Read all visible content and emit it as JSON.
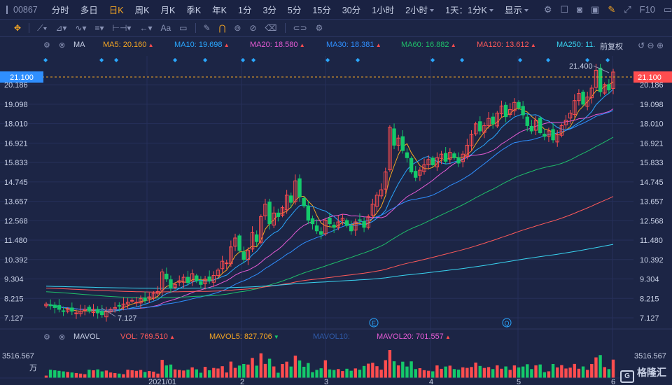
{
  "topbar": {
    "code": "00867",
    "intervals": [
      "分时",
      "多日",
      "日K",
      "周K",
      "月K",
      "季K",
      "年K",
      "1分",
      "3分",
      "5分",
      "15分",
      "30分",
      "1小时",
      "2小时",
      "1天：1分K"
    ],
    "active_interval": "日K",
    "display_label": "显示",
    "f10_label": "F10"
  },
  "toolbar": {
    "text_tool": "Aa"
  },
  "ma_legend": {
    "label": "MA",
    "items": [
      {
        "label": "MA5: 20.160",
        "color": "#f5a623"
      },
      {
        "label": "MA10: 19.698",
        "color": "#2aa7ff"
      },
      {
        "label": "MA20: 18.580",
        "color": "#e55bd5"
      },
      {
        "label": "MA30: 18.381",
        "color": "#2f8fff"
      },
      {
        "label": "MA60: 16.882",
        "color": "#1fbf6a"
      },
      {
        "label": "MA120: 13.612",
        "color": "#ff5a5a"
      },
      {
        "label": "MA250: 11.",
        "color": "#39d3f0"
      }
    ],
    "restore": "前复权"
  },
  "price_axis": {
    "ticks": [
      "21.100",
      "20.186",
      "19.098",
      "18.010",
      "16.921",
      "15.833",
      "14.745",
      "13.657",
      "12.568",
      "11.480",
      "10.392",
      "9.304",
      "8.215",
      "7.127"
    ],
    "current": "21.100"
  },
  "annotations": {
    "high": "21.400",
    "low": "7.127",
    "event_e": "E",
    "event_q": "Q"
  },
  "vol_legend": {
    "label": "MAVOL",
    "items": [
      {
        "label": "VOL: 769.510",
        "color": "#ff5a5a",
        "dir": "up"
      },
      {
        "label": "MAVOL5: 827.706",
        "color": "#f5a623",
        "dir": "down"
      },
      {
        "label": "MAVOL10:",
        "color": "#2f5aa8",
        "dir": "none"
      },
      {
        "label": "MAVOL20: 701.557",
        "color": "#e55bd5",
        "dir": "up"
      }
    ],
    "axis_value": "3516.567",
    "axis_unit": "万"
  },
  "x_axis": {
    "labels": [
      "2021/01",
      "2",
      "3",
      "4",
      "5",
      "6"
    ]
  },
  "brand": "格隆汇",
  "chart_data": {
    "type": "candlestick",
    "ylim": [
      6.5,
      21.8
    ],
    "closes": [
      7.9,
      7.8,
      7.7,
      7.6,
      7.5,
      7.6,
      7.5,
      7.4,
      7.5,
      7.6,
      7.5,
      7.6,
      7.4,
      7.3,
      7.5,
      7.6,
      7.7,
      7.8,
      7.9,
      8.0,
      8.1,
      8.0,
      8.2,
      8.1,
      8.3,
      8.5,
      8.6,
      9.7,
      9.3,
      8.8,
      9.0,
      9.2,
      9.4,
      9.1,
      9.6,
      9.2,
      9.0,
      9.3,
      9.2,
      9.5,
      9.8,
      10.3,
      10.2,
      11.1,
      11.6,
      10.9,
      10.4,
      10.9,
      11.9,
      11.4,
      12.8,
      13.5,
      12.4,
      13.0,
      12.8,
      13.3,
      14.0,
      13.6,
      14.8,
      13.9,
      13.4,
      12.6,
      12.4,
      12.0,
      11.8,
      12.6,
      12.4,
      12.2,
      12.5,
      12.7,
      12.3,
      12.0,
      12.5,
      12.6,
      12.2,
      12.8,
      13.5,
      14.0,
      14.3,
      15.3,
      17.8,
      16.8,
      17.2,
      16.5,
      16.1,
      15.3,
      15.0,
      15.4,
      15.7,
      16.0,
      15.7,
      16.1,
      16.3,
      15.9,
      16.4,
      16.1,
      15.8,
      16.3,
      16.8,
      17.4,
      18.0,
      17.6,
      17.9,
      18.3,
      18.0,
      18.6,
      19.0,
      18.4,
      18.8,
      19.2,
      18.9,
      18.5,
      17.9,
      17.6,
      18.2,
      17.5,
      17.3,
      17.6,
      17.1,
      17.4,
      17.9,
      18.2,
      18.6,
      19.3,
      19.7,
      19.1,
      19.5,
      20.0,
      21.0,
      19.8,
      20.2,
      19.9,
      20.9
    ]
  }
}
